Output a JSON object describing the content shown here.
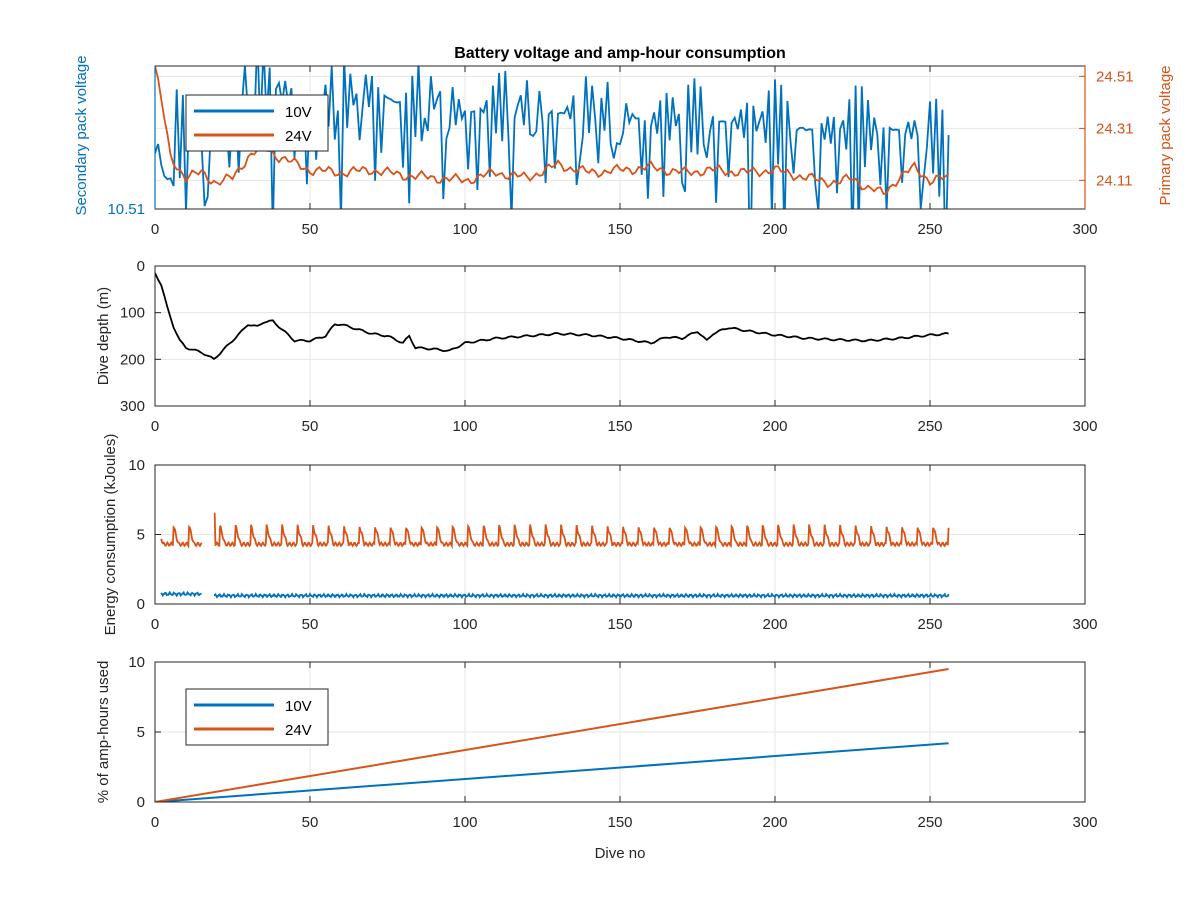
{
  "chart_data": [
    {
      "type": "line",
      "title": "Battery voltage and amp-hour consumption",
      "xlabel": "",
      "ylabel": "Secondary pack voltage",
      "ylabel_right": "Primary pack voltage",
      "xlim": [
        0,
        300
      ],
      "x_ticks": [
        "0",
        "50",
        "100",
        "150",
        "200",
        "250",
        "300"
      ],
      "ylim": [
        10.51,
        10.6
      ],
      "y_ticks": [
        "10.51"
      ],
      "ylim_right": [
        24.0,
        24.55
      ],
      "y_ticks_right": [
        "24.11",
        "24.31",
        "24.51"
      ],
      "grid": true,
      "legend_position": "top-left",
      "series": [
        {
          "name": "10V",
          "axis": "left",
          "color": "#0072BD",
          "x": [
            0,
            10,
            20,
            30,
            40,
            50,
            60,
            70,
            80,
            90,
            100,
            110,
            120,
            130,
            140,
            150,
            160,
            170,
            180,
            190,
            200,
            210,
            220,
            230,
            240,
            250,
            256
          ],
          "y": [
            10.545,
            10.56,
            10.555,
            10.59,
            10.585,
            10.575,
            10.58,
            10.585,
            10.575,
            10.58,
            10.57,
            10.575,
            10.575,
            10.57,
            10.575,
            10.57,
            10.565,
            10.57,
            10.565,
            10.565,
            10.565,
            10.56,
            10.56,
            10.56,
            10.56,
            10.56,
            10.535
          ]
        },
        {
          "name": "24V",
          "axis": "right",
          "color": "#D95319",
          "x": [
            0,
            3,
            5,
            10,
            15,
            20,
            25,
            30,
            35,
            40,
            50,
            60,
            70,
            80,
            90,
            100,
            110,
            120,
            130,
            140,
            150,
            160,
            170,
            180,
            190,
            200,
            210,
            220,
            225,
            230,
            235,
            240,
            245,
            250,
            256
          ],
          "y": [
            24.55,
            24.35,
            24.2,
            24.12,
            24.14,
            24.1,
            24.12,
            24.2,
            24.24,
            24.2,
            24.15,
            24.14,
            24.15,
            24.13,
            24.12,
            24.11,
            24.14,
            24.12,
            24.17,
            24.14,
            24.15,
            24.16,
            24.14,
            24.15,
            24.14,
            24.15,
            24.12,
            24.1,
            24.12,
            24.08,
            24.06,
            24.12,
            24.16,
            24.11,
            24.12
          ]
        }
      ]
    },
    {
      "type": "line",
      "title": "",
      "xlabel": "",
      "ylabel": "Dive depth (m)",
      "xlim": [
        0,
        300
      ],
      "x_ticks": [
        "0",
        "50",
        "100",
        "150",
        "200",
        "250",
        "300"
      ],
      "ylim": [
        0,
        300
      ],
      "y_reversed": true,
      "y_ticks": [
        "0",
        "100",
        "200",
        "300"
      ],
      "grid": true,
      "series": [
        {
          "name": "",
          "color": "#000000",
          "x": [
            0,
            2,
            4,
            6,
            8,
            10,
            15,
            19,
            22,
            25,
            28,
            30,
            33,
            35,
            38,
            40,
            45,
            48,
            50,
            55,
            58,
            60,
            65,
            70,
            75,
            80,
            82,
            84,
            90,
            95,
            100,
            110,
            120,
            130,
            140,
            150,
            160,
            165,
            170,
            175,
            178,
            180,
            185,
            190,
            200,
            210,
            220,
            230,
            240,
            250,
            256
          ],
          "y": [
            15,
            40,
            90,
            130,
            160,
            175,
            185,
            200,
            180,
            160,
            140,
            125,
            130,
            120,
            118,
            130,
            160,
            160,
            160,
            150,
            125,
            125,
            135,
            145,
            150,
            165,
            150,
            175,
            178,
            182,
            165,
            155,
            150,
            145,
            148,
            155,
            165,
            152,
            155,
            140,
            160,
            145,
            132,
            138,
            148,
            155,
            158,
            160,
            155,
            148,
            145
          ]
        }
      ]
    },
    {
      "type": "line",
      "title": "",
      "xlabel": "",
      "ylabel": "Energy consumption (kJoules)",
      "xlim": [
        0,
        300
      ],
      "x_ticks": [
        "0",
        "50",
        "100",
        "150",
        "200",
        "250",
        "300"
      ],
      "ylim": [
        0,
        10
      ],
      "y_ticks": [
        "0",
        "5",
        "10"
      ],
      "grid": true,
      "series": [
        {
          "name": "",
          "color": "#D95319",
          "baseline": 4.3,
          "peak": 5.6,
          "period": 5,
          "gap": [
            15,
            19
          ],
          "x": [
            2,
            15,
            19,
            256
          ],
          "y": [
            4.3,
            5.5,
            6.5,
            5.5
          ]
        },
        {
          "name": "",
          "color": "#0072BD",
          "baseline": 0.6,
          "gap": [
            15,
            19
          ],
          "x": [
            2,
            15,
            19,
            256
          ],
          "y": [
            0.75,
            0.7,
            0.65,
            0.6
          ]
        }
      ]
    },
    {
      "type": "line",
      "title": "",
      "xlabel": "Dive no",
      "ylabel": "% of amp-hours used",
      "xlim": [
        0,
        300
      ],
      "x_ticks": [
        "0",
        "50",
        "100",
        "150",
        "200",
        "250",
        "300"
      ],
      "ylim": [
        0,
        10
      ],
      "y_ticks": [
        "0",
        "5",
        "10"
      ],
      "grid": true,
      "legend_position": "top-left",
      "series": [
        {
          "name": "10V",
          "color": "#0072BD",
          "x": [
            0,
            256
          ],
          "y": [
            0,
            4.2
          ]
        },
        {
          "name": "24V",
          "color": "#D95319",
          "x": [
            0,
            256
          ],
          "y": [
            0,
            9.5
          ]
        }
      ]
    }
  ]
}
